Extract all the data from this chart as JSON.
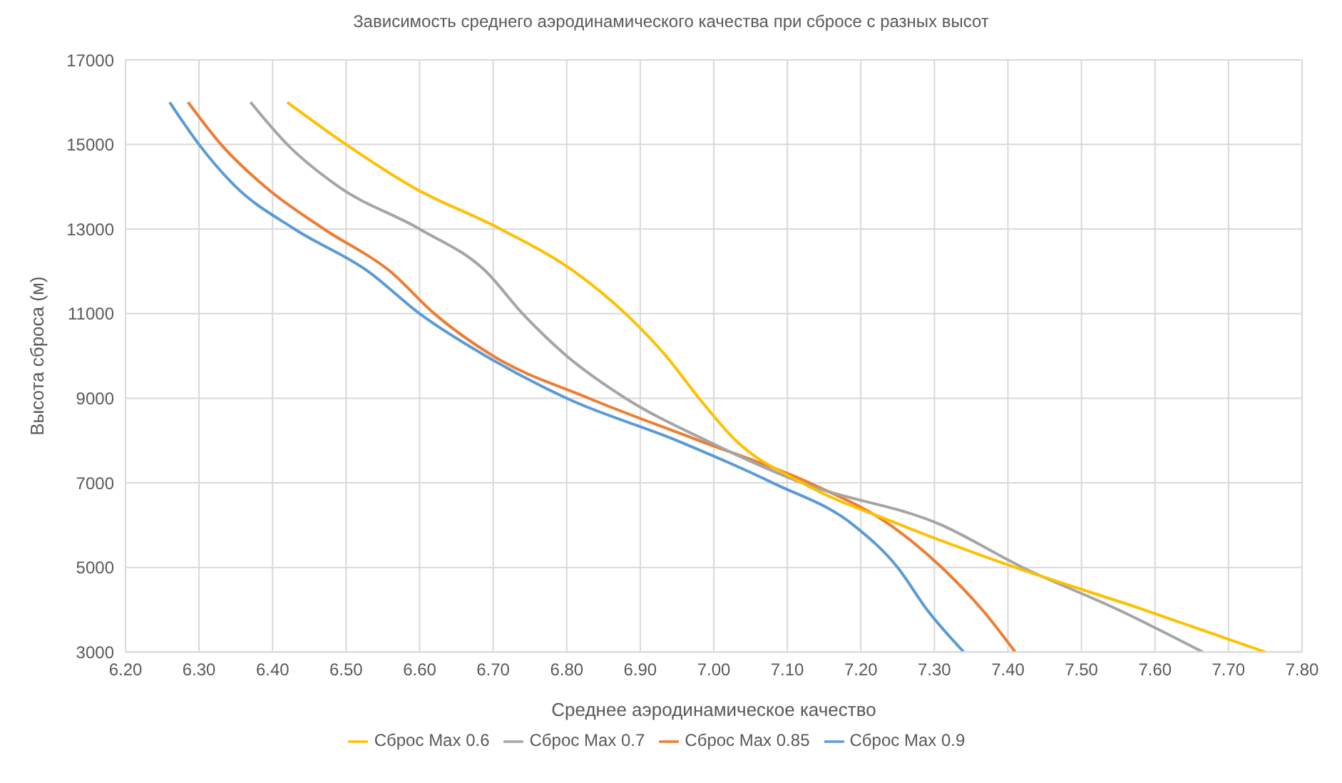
{
  "chart_data": {
    "type": "line",
    "title": "Зависимость среднего аэродинамического качества при сбросе с разных высот",
    "xlabel": "Среднее аэродинамическое качество",
    "ylabel": "Высота сброса (м)",
    "xlim": [
      6.2,
      7.8
    ],
    "xticks": [
      {
        "value": 6.2,
        "label": "6.20"
      },
      {
        "value": 6.3,
        "label": "6.30"
      },
      {
        "value": 6.4,
        "label": "6.40"
      },
      {
        "value": 6.5,
        "label": "6.50"
      },
      {
        "value": 6.6,
        "label": "6.60"
      },
      {
        "value": 6.7,
        "label": "6.70"
      },
      {
        "value": 6.8,
        "label": "6.80"
      },
      {
        "value": 6.9,
        "label": "6.90"
      },
      {
        "value": 7.0,
        "label": "7.00"
      },
      {
        "value": 7.1,
        "label": "7.10"
      },
      {
        "value": 7.2,
        "label": "7.20"
      },
      {
        "value": 7.3,
        "label": "7.30"
      },
      {
        "value": 7.4,
        "label": "7.40"
      },
      {
        "value": 7.5,
        "label": "7.50"
      },
      {
        "value": 7.6,
        "label": "7.60"
      },
      {
        "value": 7.7,
        "label": "7.70"
      },
      {
        "value": 7.8,
        "label": "7.80"
      }
    ],
    "ylim": [
      3000,
      17000
    ],
    "yticks": [
      3000,
      5000,
      7000,
      9000,
      11000,
      13000,
      15000,
      17000
    ],
    "grid": true,
    "legend": "bottom",
    "marker": "none",
    "line_style": "solid",
    "series": [
      {
        "name": "Сброс Max 0.9",
        "color": "#5b9bd5",
        "x": [
          6.26,
          6.3,
          6.35,
          6.43,
          6.53,
          6.6,
          6.69,
          6.8,
          6.95,
          7.08,
          7.19,
          7.25,
          7.29,
          7.34
        ],
        "values": [
          16000,
          15000,
          14000,
          13000,
          12000,
          11000,
          10000,
          9000,
          8000,
          7000,
          6000,
          5000,
          4000,
          3000
        ]
      },
      {
        "name": "Сброс Max 0.85",
        "color": "#ed7d31",
        "x": [
          6.285,
          6.33,
          6.39,
          6.47,
          6.56,
          6.62,
          6.7,
          6.83,
          6.98,
          7.13,
          7.24,
          7.31,
          7.365,
          7.41
        ],
        "values": [
          16000,
          15000,
          14000,
          13000,
          12000,
          11000,
          10000,
          9000,
          8000,
          7000,
          6000,
          5000,
          4000,
          3000
        ]
      },
      {
        "name": "Сброс Max 0.7",
        "color": "#a5a5a5",
        "x": [
          6.37,
          6.42,
          6.49,
          6.6,
          6.69,
          6.74,
          6.8,
          6.88,
          6.99,
          7.12,
          7.31,
          7.42,
          7.55,
          7.665
        ],
        "values": [
          16000,
          15000,
          14000,
          13000,
          12000,
          11000,
          10000,
          9000,
          8000,
          7000,
          6000,
          5000,
          4000,
          3000
        ]
      },
      {
        "name": "Сброс Max 0.6",
        "color": "#ffc000",
        "x": [
          6.42,
          6.5,
          6.59,
          6.71,
          6.81,
          6.88,
          6.935,
          6.98,
          7.03,
          7.12,
          7.255,
          7.41,
          7.585,
          7.75
        ],
        "values": [
          16000,
          15000,
          14000,
          13000,
          12000,
          11000,
          10000,
          9000,
          8000,
          7000,
          6000,
          5000,
          4000,
          3000
        ]
      }
    ]
  }
}
